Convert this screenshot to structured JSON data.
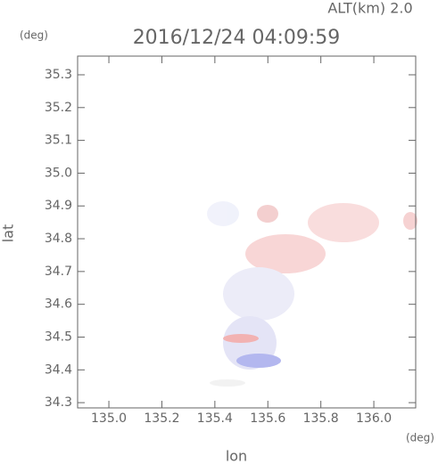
{
  "chart_data": {
    "type": "heatmap",
    "title": "2016/12/24 04:09:59",
    "subtitle": "ALT(km) 2.0",
    "x_label": "lon",
    "y_label": "lat",
    "x_unit": "(deg)",
    "y_unit": "(deg)",
    "xlim": [
      134.882,
      136.158
    ],
    "ylim": [
      34.284,
      35.357
    ],
    "xticks": [
      {
        "value": 135,
        "label": "135.0"
      },
      135.2,
      135.4,
      135.6,
      135.8,
      {
        "value": 136,
        "label": "136.0"
      }
    ],
    "yticks": [
      34.3,
      34.4,
      34.5,
      34.6,
      34.7,
      34.8,
      34.9,
      {
        "value": 35,
        "label": "35.0"
      },
      35.1,
      35.2,
      35.3
    ]
  }
}
